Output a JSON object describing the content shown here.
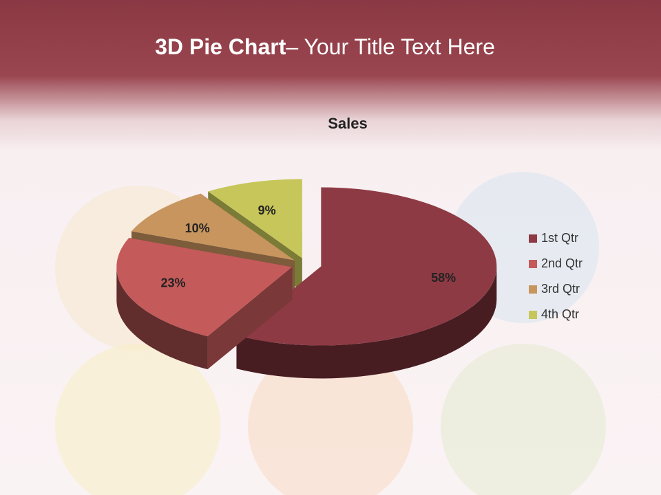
{
  "slide": {
    "title_bold": "3D Pie Chart",
    "title_rest": "– Your Title Text Here"
  },
  "chart_data": {
    "type": "pie",
    "title": "Sales",
    "categories": [
      "1st Qtr",
      "2nd Qtr",
      "3rd Qtr",
      "4th Qtr"
    ],
    "values": [
      58,
      23,
      10,
      9
    ],
    "value_labels": [
      "58%",
      "23%",
      "10%",
      "9%"
    ],
    "colors": [
      "#8e3a44",
      "#c45a5a",
      "#c8955f",
      "#c6c65a"
    ],
    "legend": "right"
  }
}
